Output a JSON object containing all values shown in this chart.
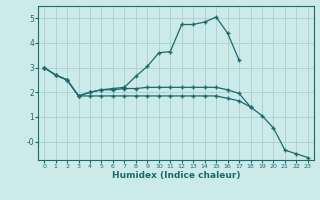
{
  "xlabel": "Humidex (Indice chaleur)",
  "bg_color": "#cceaea",
  "line_color": "#1a6b6b",
  "grid_color": "#aacfcf",
  "x_values": [
    0,
    1,
    2,
    3,
    4,
    5,
    6,
    7,
    8,
    9,
    10,
    11,
    12,
    13,
    14,
    15,
    16,
    17,
    18,
    19,
    20,
    21,
    22,
    23
  ],
  "line1": [
    3.0,
    2.7,
    2.5,
    1.85,
    2.0,
    2.1,
    2.15,
    2.2,
    2.65,
    3.05,
    3.6,
    3.65,
    4.75,
    4.75,
    4.85,
    5.05,
    4.4,
    3.3,
    null,
    null,
    null,
    null,
    null,
    null
  ],
  "line2": [
    3.0,
    2.7,
    2.5,
    1.85,
    2.0,
    2.1,
    2.1,
    2.15,
    2.15,
    2.2,
    2.2,
    2.2,
    2.2,
    2.2,
    2.2,
    2.2,
    2.1,
    1.95,
    1.4,
    null,
    null,
    null,
    null,
    null
  ],
  "line3": [
    3.0,
    2.7,
    2.5,
    1.85,
    1.85,
    1.85,
    1.85,
    1.85,
    1.85,
    1.85,
    1.85,
    1.85,
    1.85,
    1.85,
    1.85,
    1.85,
    1.75,
    1.65,
    1.4,
    1.05,
    0.55,
    -0.35,
    -0.5,
    -0.65
  ],
  "ylim": [
    -0.75,
    5.5
  ],
  "xlim": [
    -0.5,
    23.5
  ]
}
